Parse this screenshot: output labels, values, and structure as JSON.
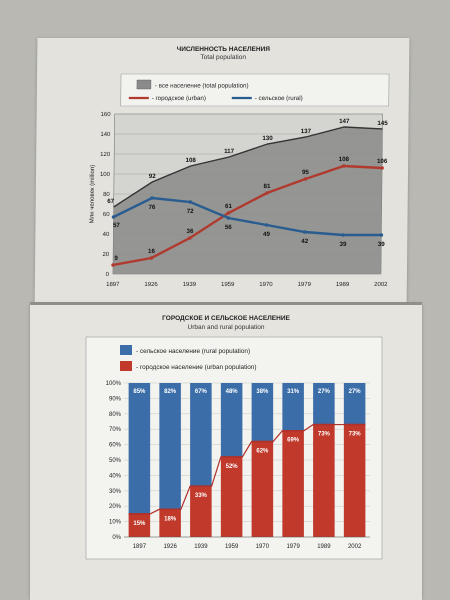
{
  "chart_data": [
    {
      "type": "area",
      "title": "ЧИСЛЕННОСТЬ НАСЕЛЕНИЯ",
      "subtitle": "Total population",
      "ylabel": "Млн человек (million)",
      "ylim": [
        0,
        160
      ],
      "yticks": [
        0,
        20,
        40,
        60,
        80,
        100,
        120,
        140,
        160
      ],
      "grid": true,
      "legend_position": "top",
      "categories": [
        "1897",
        "1926",
        "1939",
        "1959",
        "1970",
        "1979",
        "1989",
        "2002"
      ],
      "series": [
        {
          "name": "- все население (total population)",
          "kind": "area",
          "color": "#8a8a8a",
          "values": [
            67,
            92,
            108,
            117,
            130,
            137,
            147,
            145
          ]
        },
        {
          "name": "- городское (urban)",
          "kind": "line",
          "color": "#b03a2e",
          "values": [
            9,
            16,
            36,
            61,
            81,
            95,
            108,
            106
          ]
        },
        {
          "name": "- сельское (rural)",
          "kind": "line",
          "color": "#2a5d8f",
          "values": [
            57,
            76,
            72,
            56,
            49,
            42,
            39,
            39
          ]
        }
      ]
    },
    {
      "type": "bar",
      "stacked": true,
      "title": "ГОРОДСКОЕ И СЕЛЬСКОЕ НАСЕЛЕНИЕ",
      "subtitle": "Urban and rural population",
      "ylim": [
        0,
        100
      ],
      "yticks": [
        "0%",
        "10%",
        "20%",
        "30%",
        "40%",
        "50%",
        "60%",
        "70%",
        "80%",
        "90%",
        "100%"
      ],
      "grid": true,
      "legend_position": "top-left",
      "categories": [
        "1897",
        "1926",
        "1939",
        "1959",
        "1970",
        "1979",
        "1989",
        "2002"
      ],
      "series": [
        {
          "name": "- сельское население (rural population)",
          "color": "#3b6ea8",
          "values": [
            85,
            82,
            67,
            48,
            38,
            31,
            27,
            27
          ],
          "labels": [
            "85%",
            "82%",
            "67%",
            "48%",
            "38%",
            "31%",
            "27%",
            "27%"
          ]
        },
        {
          "name": "- городское население (urban population)",
          "color": "#c0392b",
          "values": [
            15,
            18,
            33,
            52,
            62,
            69,
            73,
            73
          ],
          "labels": [
            "15%",
            "18%",
            "33%",
            "52%",
            "62%",
            "69%",
            "73%",
            "73%"
          ]
        }
      ]
    }
  ]
}
